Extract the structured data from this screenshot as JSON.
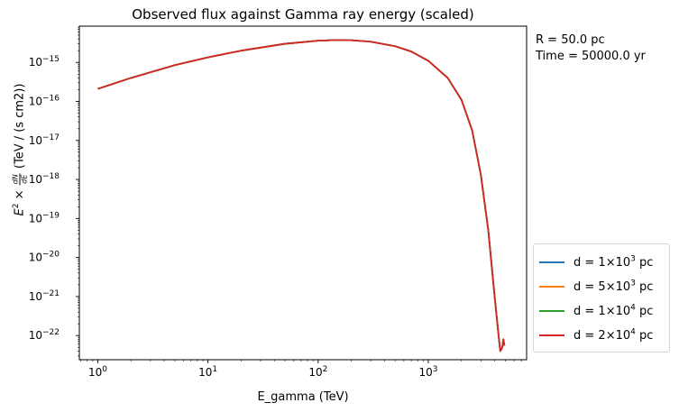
{
  "chart_data": {
    "type": "line",
    "title": "Observed flux against Gamma ray energy (scaled)",
    "xlabel": "E_gamma (TeV)",
    "ylabel": {
      "prefix": "E",
      "exponent": "2",
      "times": "×",
      "fraction_numerator": "dN",
      "fraction_denominator": "dE",
      "units": "(TeV / (s cm2))"
    },
    "x_scale": "log",
    "y_scale": "log",
    "xlim": [
      0.68,
      7800
    ],
    "ylim": [
      2.4e-23,
      8.5e-15
    ],
    "x_ticks": [
      {
        "base": "10",
        "exp": "0"
      },
      {
        "base": "10",
        "exp": "1"
      },
      {
        "base": "10",
        "exp": "2"
      },
      {
        "base": "10",
        "exp": "3"
      }
    ],
    "y_ticks": [
      {
        "base": "10",
        "exp": "−15"
      },
      {
        "base": "10",
        "exp": "−16"
      },
      {
        "base": "10",
        "exp": "−17"
      },
      {
        "base": "10",
        "exp": "−18"
      },
      {
        "base": "10",
        "exp": "−19"
      },
      {
        "base": "10",
        "exp": "−20"
      },
      {
        "base": "10",
        "exp": "−21"
      },
      {
        "base": "10",
        "exp": "−22"
      }
    ],
    "x": [
      1,
      2,
      5,
      10,
      20,
      50,
      100,
      150,
      200,
      300,
      500,
      700,
      1000,
      1500,
      2000,
      2500,
      3000,
      3500,
      4000,
      4300,
      4500,
      4700,
      4800,
      4900
    ],
    "series": [
      {
        "name": {
          "pre": "d = 1",
          "times": "×",
          "base": "10",
          "exp": "3",
          "unit": "pc"
        },
        "color": "#1f77b4",
        "values": [
          2.1e-16,
          4e-16,
          8.5e-16,
          1.35e-15,
          2e-15,
          3e-15,
          3.6e-15,
          3.75e-15,
          3.7e-15,
          3.4e-15,
          2.6e-15,
          1.9e-15,
          1.1e-15,
          4e-16,
          1.1e-16,
          1.8e-17,
          1.3e-18,
          5e-20,
          1e-21,
          1.3e-22,
          4e-23,
          5e-23,
          8e-23,
          5.5e-23
        ]
      },
      {
        "name": {
          "pre": "d = 5",
          "times": "×",
          "base": "10",
          "exp": "3",
          "unit": "pc"
        },
        "color": "#ff7f0e",
        "values": [
          2.1e-16,
          4e-16,
          8.5e-16,
          1.35e-15,
          2e-15,
          3e-15,
          3.6e-15,
          3.75e-15,
          3.7e-15,
          3.4e-15,
          2.6e-15,
          1.9e-15,
          1.1e-15,
          4e-16,
          1.1e-16,
          1.8e-17,
          1.3e-18,
          5e-20,
          1e-21,
          1.3e-22,
          4e-23,
          5e-23,
          8e-23,
          5.5e-23
        ]
      },
      {
        "name": {
          "pre": "d = 1",
          "times": "×",
          "base": "10",
          "exp": "4",
          "unit": "pc"
        },
        "color": "#2ca02c",
        "values": [
          2.1e-16,
          4e-16,
          8.5e-16,
          1.35e-15,
          2e-15,
          3e-15,
          3.6e-15,
          3.75e-15,
          3.7e-15,
          3.4e-15,
          2.6e-15,
          1.9e-15,
          1.1e-15,
          4e-16,
          1.1e-16,
          1.8e-17,
          1.3e-18,
          5e-20,
          1e-21,
          1.3e-22,
          4e-23,
          5e-23,
          8e-23,
          5.5e-23
        ]
      },
      {
        "name": {
          "pre": "d = 2",
          "times": "×",
          "base": "10",
          "exp": "4",
          "unit": "pc"
        },
        "color": "#d62728",
        "values": [
          2.1e-16,
          4e-16,
          8.5e-16,
          1.35e-15,
          2e-15,
          3e-15,
          3.6e-15,
          3.75e-15,
          3.7e-15,
          3.4e-15,
          2.6e-15,
          1.9e-15,
          1.1e-15,
          4e-16,
          1.1e-16,
          1.8e-17,
          1.3e-18,
          5e-20,
          1e-21,
          1.3e-22,
          4e-23,
          5e-23,
          8e-23,
          5.5e-23
        ]
      }
    ],
    "annotations": [
      "R = 50.0 pc",
      "Time = 50000.0 yr"
    ],
    "legend_position": "lower right, outside plot",
    "grid": false
  }
}
